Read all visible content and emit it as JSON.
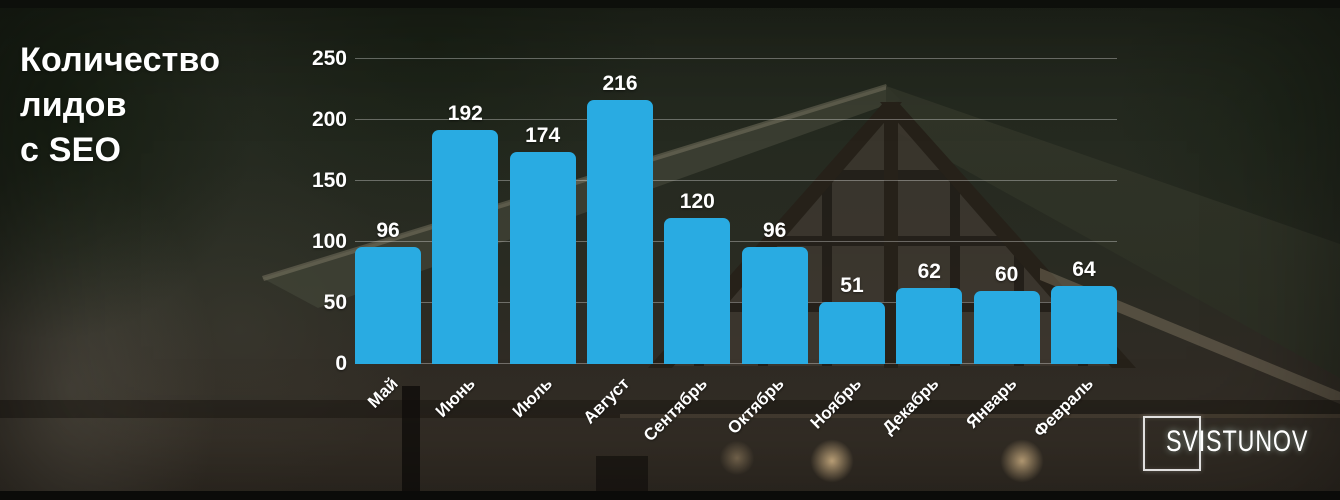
{
  "title": {
    "text": "Количество\nлидов\nс SEO"
  },
  "chart_data": {
    "type": "bar",
    "title": "Количество лидов с SEO",
    "categories": [
      "Май",
      "Июнь",
      "Июль",
      "Август",
      "Сентябрь",
      "Октябрь",
      "Ноябрь",
      "Декабрь",
      "Январь",
      "Февраль"
    ],
    "values": [
      96,
      192,
      174,
      216,
      120,
      96,
      51,
      62,
      60,
      64
    ],
    "xlabel": "",
    "ylabel": "",
    "ylim": [
      0,
      250
    ],
    "yticks": [
      0,
      50,
      100,
      150,
      200,
      250
    ],
    "grid": true,
    "legend": "none",
    "bar_color": "#29ABE2",
    "grid_color": "rgba(255,255,255,0.32)",
    "text_color": "#FFFFFF"
  },
  "watermark": {
    "brand": "SVISTUNOV"
  },
  "colors": {
    "background_base": "#2B2B22",
    "top_strip": "#0D0F0B",
    "bottom_strip": "#0B0B09",
    "title_color": "#FFFFFF"
  }
}
